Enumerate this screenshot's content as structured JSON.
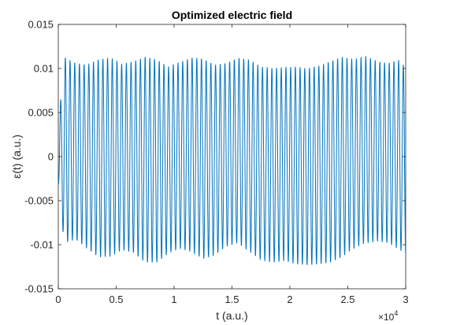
{
  "chart_data": {
    "type": "line",
    "title": "Optimized electric field",
    "xlabel": "t (a.u.)",
    "ylabel": "ε(t) (a.u.)",
    "xlim": [
      0,
      30000
    ],
    "ylim": [
      -0.015,
      0.015
    ],
    "x_ticks": [
      0,
      5000,
      10000,
      15000,
      20000,
      25000,
      30000
    ],
    "x_tick_labels": [
      "0",
      "0.5",
      "1",
      "1.5",
      "2",
      "2.5",
      "3"
    ],
    "x_exponent_base": "×10",
    "x_exponent_power": "4",
    "y_ticks": [
      -0.015,
      -0.01,
      -0.005,
      0,
      0.005,
      0.01,
      0.015
    ],
    "y_tick_labels": [
      "-0.015",
      "-0.01",
      "-0.005",
      "0",
      "0.005",
      "0.01",
      "0.015"
    ],
    "grid": false,
    "series_color": "#0072BD",
    "series": [
      {
        "carrier_cycles": 74,
        "x": [
          0,
          500,
          1500,
          2500,
          3500,
          4500,
          5500,
          6500,
          7500,
          8500,
          9500,
          10500,
          11500,
          12500,
          13500,
          14500,
          15500,
          16500,
          17500,
          18500,
          19500,
          20500,
          21500,
          22500,
          23500,
          24500,
          25500,
          26500,
          27500,
          28500,
          29500,
          30000
        ],
        "upper_envelope": [
          0.003,
          0.0113,
          0.0106,
          0.0104,
          0.011,
          0.0112,
          0.0105,
          0.0108,
          0.0113,
          0.011,
          0.0102,
          0.0107,
          0.0112,
          0.0111,
          0.0104,
          0.0106,
          0.0112,
          0.011,
          0.0102,
          0.01,
          0.0101,
          0.0102,
          0.01,
          0.0103,
          0.0108,
          0.0113,
          0.011,
          0.0114,
          0.0108,
          0.0106,
          0.011,
          0.01
        ],
        "lower_envelope": [
          -0.003,
          -0.0098,
          -0.0094,
          -0.0104,
          -0.0114,
          -0.0113,
          -0.0106,
          -0.0109,
          -0.012,
          -0.012,
          -0.011,
          -0.0104,
          -0.0108,
          -0.0116,
          -0.0112,
          -0.0102,
          -0.0098,
          -0.0108,
          -0.0117,
          -0.012,
          -0.0118,
          -0.0122,
          -0.0123,
          -0.0122,
          -0.012,
          -0.0114,
          -0.0104,
          -0.0098,
          -0.0096,
          -0.0098,
          -0.0106,
          -0.011
        ]
      }
    ]
  }
}
